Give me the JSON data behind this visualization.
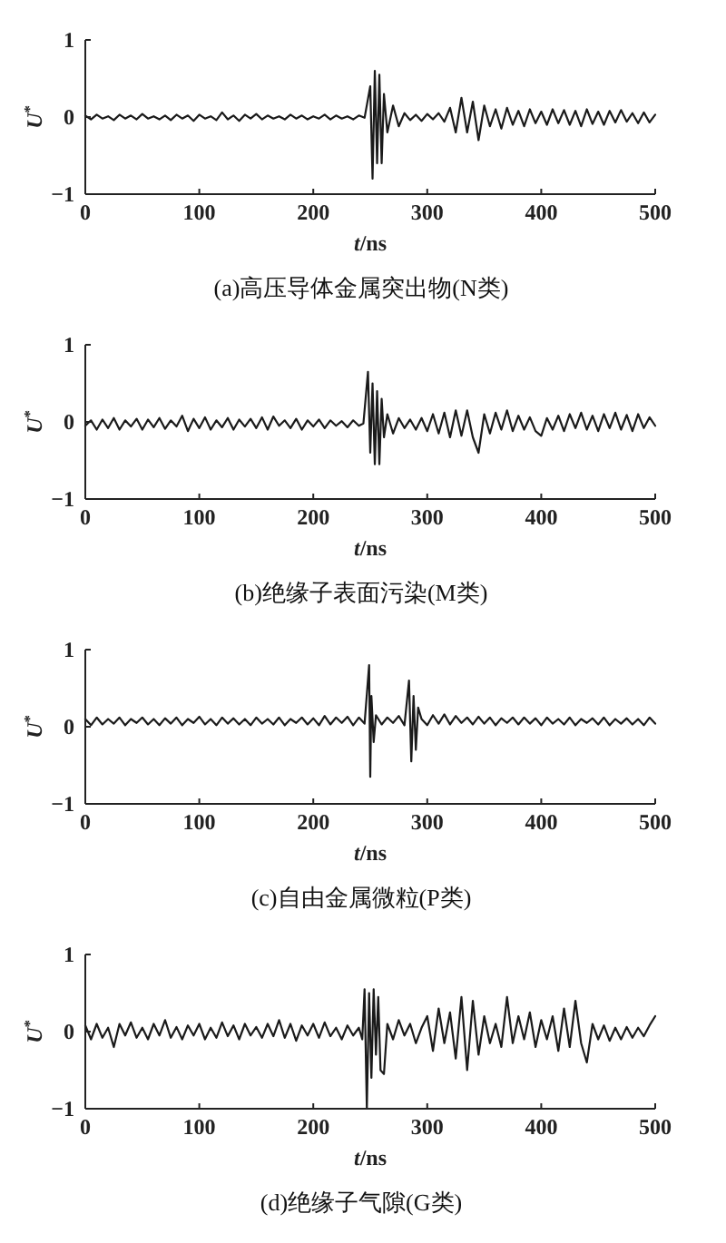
{
  "chart_data": [
    {
      "type": "line",
      "title": "(a)高压导体金属突出物(N类)",
      "xlabel": "*t*/ns",
      "ylabel": "*U*$^{*}$",
      "color": "#1a1a1a",
      "xlim": [
        0,
        500
      ],
      "ylim": [
        -1,
        1
      ],
      "xticks": [
        0,
        100,
        200,
        300,
        400,
        500
      ],
      "yticks": [
        -1,
        0,
        1
      ],
      "x": [
        0,
        5,
        10,
        15,
        20,
        25,
        30,
        35,
        40,
        45,
        50,
        55,
        60,
        65,
        70,
        75,
        80,
        85,
        90,
        95,
        100,
        105,
        110,
        115,
        120,
        125,
        130,
        135,
        140,
        145,
        150,
        155,
        160,
        165,
        170,
        175,
        180,
        185,
        190,
        195,
        200,
        205,
        210,
        215,
        220,
        225,
        230,
        235,
        240,
        245,
        250,
        252,
        254,
        256,
        258,
        260,
        262,
        265,
        270,
        275,
        280,
        285,
        290,
        295,
        300,
        305,
        310,
        315,
        320,
        325,
        330,
        335,
        340,
        345,
        350,
        355,
        360,
        365,
        370,
        375,
        380,
        385,
        390,
        395,
        400,
        405,
        410,
        415,
        420,
        425,
        430,
        435,
        440,
        445,
        450,
        455,
        460,
        465,
        470,
        475,
        480,
        485,
        490,
        495,
        500
      ],
      "values": [
        0.02,
        -0.03,
        0.03,
        -0.02,
        0.01,
        -0.04,
        0.03,
        -0.02,
        0.02,
        -0.03,
        0.04,
        -0.02,
        0.01,
        -0.03,
        0.02,
        -0.04,
        0.03,
        -0.02,
        0.02,
        -0.05,
        0.03,
        -0.02,
        0.01,
        -0.04,
        0.06,
        -0.03,
        0.02,
        -0.05,
        0.03,
        -0.02,
        0.04,
        -0.03,
        0.02,
        -0.02,
        0.01,
        -0.03,
        0.03,
        -0.02,
        0.02,
        -0.03,
        0.01,
        -0.02,
        0.03,
        -0.03,
        0.02,
        -0.02,
        0.01,
        -0.03,
        0.02,
        -0.01,
        0.4,
        -0.8,
        0.6,
        -0.6,
        0.55,
        -0.6,
        0.3,
        -0.2,
        0.15,
        -0.12,
        0.05,
        -0.04,
        0.03,
        -0.05,
        0.04,
        -0.03,
        0.05,
        -0.06,
        0.12,
        -0.2,
        0.25,
        -0.2,
        0.2,
        -0.3,
        0.15,
        -0.12,
        0.1,
        -0.15,
        0.12,
        -0.1,
        0.08,
        -0.12,
        0.1,
        -0.08,
        0.07,
        -0.1,
        0.1,
        -0.08,
        0.09,
        -0.1,
        0.08,
        -0.12,
        0.1,
        -0.09,
        0.07,
        -0.1,
        0.08,
        -0.07,
        0.09,
        -0.06,
        0.05,
        -0.08,
        0.06,
        -0.07,
        0.03
      ]
    },
    {
      "type": "line",
      "title": "(b)绝缘子表面污染(M类)",
      "xlabel": "*t*/ns",
      "ylabel": "*U*$^{*}$",
      "color": "#1a1a1a",
      "xlim": [
        0,
        500
      ],
      "ylim": [
        -1,
        1
      ],
      "xticks": [
        0,
        100,
        200,
        300,
        400,
        500
      ],
      "yticks": [
        -1,
        0,
        1
      ],
      "x": [
        0,
        5,
        10,
        15,
        20,
        25,
        30,
        35,
        40,
        45,
        50,
        55,
        60,
        65,
        70,
        75,
        80,
        85,
        90,
        95,
        100,
        105,
        110,
        115,
        120,
        125,
        130,
        135,
        140,
        145,
        150,
        155,
        160,
        165,
        170,
        175,
        180,
        185,
        190,
        195,
        200,
        205,
        210,
        215,
        220,
        225,
        230,
        235,
        240,
        244,
        248,
        250,
        252,
        254,
        256,
        258,
        260,
        262,
        265,
        270,
        275,
        280,
        285,
        290,
        295,
        300,
        305,
        310,
        315,
        320,
        325,
        330,
        335,
        340,
        345,
        350,
        355,
        360,
        365,
        370,
        375,
        380,
        385,
        390,
        395,
        400,
        405,
        410,
        415,
        420,
        425,
        430,
        435,
        440,
        445,
        450,
        455,
        460,
        465,
        470,
        475,
        480,
        485,
        490,
        495,
        500
      ],
      "values": [
        -0.05,
        0.02,
        -0.1,
        0.03,
        -0.08,
        0.05,
        -0.1,
        0.02,
        -0.06,
        0.04,
        -0.1,
        0.03,
        -0.07,
        0.05,
        -0.09,
        0.02,
        -0.06,
        0.08,
        -0.12,
        0.04,
        -0.08,
        0.06,
        -0.1,
        0.02,
        -0.07,
        0.05,
        -0.1,
        0.03,
        -0.06,
        0.04,
        -0.08,
        0.06,
        -0.1,
        0.07,
        -0.05,
        0.02,
        -0.08,
        0.04,
        -0.1,
        0.02,
        -0.06,
        0.03,
        -0.08,
        0.02,
        -0.05,
        0.01,
        -0.07,
        0.02,
        -0.05,
        -0.02,
        0.65,
        -0.4,
        0.5,
        -0.55,
        0.4,
        -0.55,
        0.3,
        -0.2,
        0.1,
        -0.15,
        0.05,
        -0.08,
        0.03,
        -0.1,
        0.05,
        -0.12,
        0.1,
        -0.15,
        0.12,
        -0.2,
        0.15,
        -0.18,
        0.15,
        -0.2,
        -0.4,
        0.1,
        -0.15,
        0.12,
        -0.1,
        0.15,
        -0.12,
        0.08,
        -0.1,
        0.06,
        -0.12,
        -0.18,
        0.05,
        -0.1,
        0.08,
        -0.12,
        0.1,
        -0.08,
        0.12,
        -0.1,
        0.08,
        -0.12,
        0.1,
        -0.08,
        0.12,
        -0.1,
        0.09,
        -0.12,
        0.1,
        -0.08,
        0.06,
        -0.05
      ]
    },
    {
      "type": "line",
      "title": "(c)自由金属微粒(P类)",
      "xlabel": "*t*/ns",
      "ylabel": "*U*$^{*}$",
      "color": "#1a1a1a",
      "xlim": [
        0,
        500
      ],
      "ylim": [
        -1,
        1
      ],
      "xticks": [
        0,
        100,
        200,
        300,
        400,
        500
      ],
      "yticks": [
        -1,
        0,
        1
      ],
      "x": [
        0,
        5,
        10,
        15,
        20,
        25,
        30,
        35,
        40,
        45,
        50,
        55,
        60,
        65,
        70,
        75,
        80,
        85,
        90,
        95,
        100,
        105,
        110,
        115,
        120,
        125,
        130,
        135,
        140,
        145,
        150,
        155,
        160,
        165,
        170,
        175,
        180,
        185,
        190,
        195,
        200,
        205,
        210,
        215,
        220,
        225,
        230,
        235,
        240,
        245,
        249,
        250,
        251,
        253,
        255,
        260,
        265,
        270,
        275,
        280,
        284,
        286,
        288,
        290,
        292,
        295,
        300,
        305,
        310,
        315,
        320,
        325,
        330,
        335,
        340,
        345,
        350,
        355,
        360,
        365,
        370,
        375,
        380,
        385,
        390,
        395,
        400,
        405,
        410,
        415,
        420,
        425,
        430,
        435,
        440,
        445,
        450,
        455,
        460,
        465,
        470,
        475,
        480,
        485,
        490,
        495,
        500
      ],
      "values": [
        0.1,
        0.02,
        0.12,
        0.03,
        0.1,
        0.04,
        0.12,
        0.02,
        0.1,
        0.05,
        0.12,
        0.03,
        0.1,
        0.02,
        0.11,
        0.04,
        0.12,
        0.02,
        0.1,
        0.05,
        0.13,
        0.03,
        0.1,
        0.02,
        0.12,
        0.04,
        0.11,
        0.03,
        0.1,
        0.02,
        0.12,
        0.04,
        0.1,
        0.03,
        0.12,
        0.02,
        0.1,
        0.05,
        0.12,
        0.03,
        0.11,
        0.02,
        0.14,
        0.03,
        0.12,
        0.05,
        0.13,
        0.02,
        0.12,
        0.04,
        0.8,
        -0.65,
        0.4,
        -0.2,
        0.15,
        0.03,
        0.12,
        0.05,
        0.14,
        0.02,
        0.6,
        -0.45,
        0.4,
        -0.3,
        0.25,
        0.1,
        0.02,
        0.15,
        0.04,
        0.16,
        0.03,
        0.14,
        0.05,
        0.12,
        0.03,
        0.13,
        0.04,
        0.12,
        0.02,
        0.11,
        0.05,
        0.12,
        0.03,
        0.12,
        0.04,
        0.11,
        0.02,
        0.12,
        0.04,
        0.1,
        0.03,
        0.12,
        0.02,
        0.1,
        0.05,
        0.11,
        0.03,
        0.12,
        0.02,
        0.1,
        0.04,
        0.11,
        0.03,
        0.1,
        0.02,
        0.12,
        0.04
      ]
    },
    {
      "type": "line",
      "title": "(d)绝缘子气隙(G类)",
      "xlabel": "*t*/ns",
      "ylabel": "*U*$^{*}$",
      "color": "#1a1a1a",
      "xlim": [
        0,
        500
      ],
      "ylim": [
        -1,
        1
      ],
      "xticks": [
        0,
        100,
        200,
        300,
        400,
        500
      ],
      "yticks": [
        -1,
        0,
        1
      ],
      "x": [
        0,
        5,
        10,
        15,
        20,
        25,
        30,
        35,
        40,
        45,
        50,
        55,
        60,
        65,
        70,
        75,
        80,
        85,
        90,
        95,
        100,
        105,
        110,
        115,
        120,
        125,
        130,
        135,
        140,
        145,
        150,
        155,
        160,
        165,
        170,
        175,
        180,
        185,
        190,
        195,
        200,
        205,
        210,
        215,
        220,
        225,
        230,
        235,
        240,
        243,
        245,
        247,
        249,
        251,
        253,
        255,
        257,
        259,
        262,
        265,
        270,
        275,
        280,
        285,
        290,
        295,
        300,
        305,
        310,
        315,
        320,
        325,
        330,
        335,
        340,
        345,
        350,
        355,
        360,
        365,
        370,
        375,
        380,
        385,
        390,
        395,
        400,
        405,
        410,
        415,
        420,
        425,
        430,
        435,
        440,
        445,
        450,
        455,
        460,
        465,
        470,
        475,
        480,
        485,
        490,
        495,
        500
      ],
      "values": [
        0.08,
        -0.1,
        0.1,
        -0.08,
        0.05,
        -0.2,
        0.1,
        -0.05,
        0.12,
        -0.08,
        0.05,
        -0.1,
        0.1,
        -0.05,
        0.15,
        -0.08,
        0.06,
        -0.1,
        0.08,
        -0.05,
        0.1,
        -0.1,
        0.05,
        -0.08,
        0.12,
        -0.06,
        0.08,
        -0.1,
        0.1,
        -0.05,
        0.06,
        -0.08,
        0.1,
        -0.06,
        0.15,
        -0.08,
        0.1,
        -0.12,
        0.08,
        -0.05,
        0.1,
        -0.08,
        0.12,
        -0.06,
        0.05,
        -0.1,
        0.08,
        -0.05,
        0.05,
        -0.1,
        0.55,
        -1,
        0.5,
        -0.6,
        0.55,
        -0.3,
        0.45,
        -0.5,
        -0.55,
        0.1,
        -0.1,
        0.15,
        -0.05,
        0.1,
        -0.15,
        0.05,
        0.2,
        -0.25,
        0.3,
        -0.15,
        0.25,
        -0.35,
        0.45,
        -0.5,
        0.4,
        -0.3,
        0.2,
        -0.15,
        0.1,
        -0.2,
        0.45,
        -0.15,
        0.2,
        -0.1,
        0.25,
        -0.2,
        0.15,
        -0.1,
        0.2,
        -0.25,
        0.3,
        -0.2,
        0.4,
        -0.15,
        -0.4,
        0.1,
        -0.1,
        0.08,
        -0.12,
        0.05,
        -0.1,
        0.06,
        -0.08,
        0.05,
        -0.06,
        0.08,
        0.2
      ]
    }
  ]
}
